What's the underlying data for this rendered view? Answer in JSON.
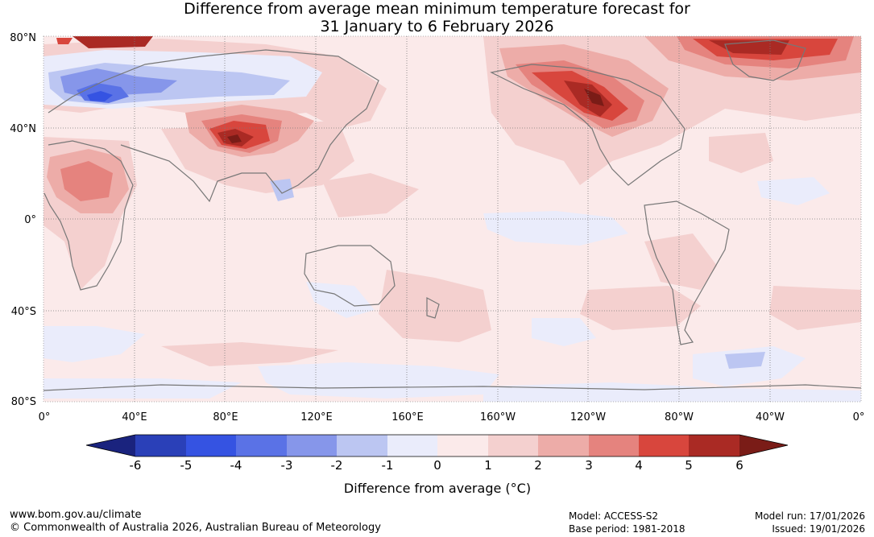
{
  "title": {
    "line1": "Difference from average mean minimum temperature forecast for",
    "line2": "31 January to 6 February 2026"
  },
  "map": {
    "lat_labels": [
      "80°N",
      "40°N",
      "0°",
      "40°S",
      "80°S"
    ],
    "lon_labels": [
      "0°",
      "40°E",
      "80°E",
      "120°E",
      "160°E",
      "160°W",
      "120°W",
      "80°W",
      "40°W",
      "0°"
    ]
  },
  "colorbar": {
    "ticks": [
      "-6",
      "-5",
      "-4",
      "-3",
      "-2",
      "-1",
      "0",
      "1",
      "2",
      "3",
      "4",
      "5",
      "6"
    ],
    "colors": [
      "#1a237e",
      "#2a40b8",
      "#3553e2",
      "#5a72e6",
      "#8696ea",
      "#bcc6f2",
      "#eaecfb",
      "#fbeaea",
      "#f4d0cf",
      "#edaca8",
      "#e5837e",
      "#d8463d",
      "#aa2a24",
      "#7a1c17"
    ],
    "label": "Difference from average (°C)"
  },
  "footer": {
    "url": "www.bom.gov.au/climate",
    "copyright": "© Commonwealth of Australia 2026, Australian Bureau of Meteorology",
    "model": "Model: ACCESS-S2",
    "base_period": "Base period: 1981-2018",
    "model_run": "Model run: 17/01/2026",
    "issued": "Issued: 19/01/2026"
  }
}
